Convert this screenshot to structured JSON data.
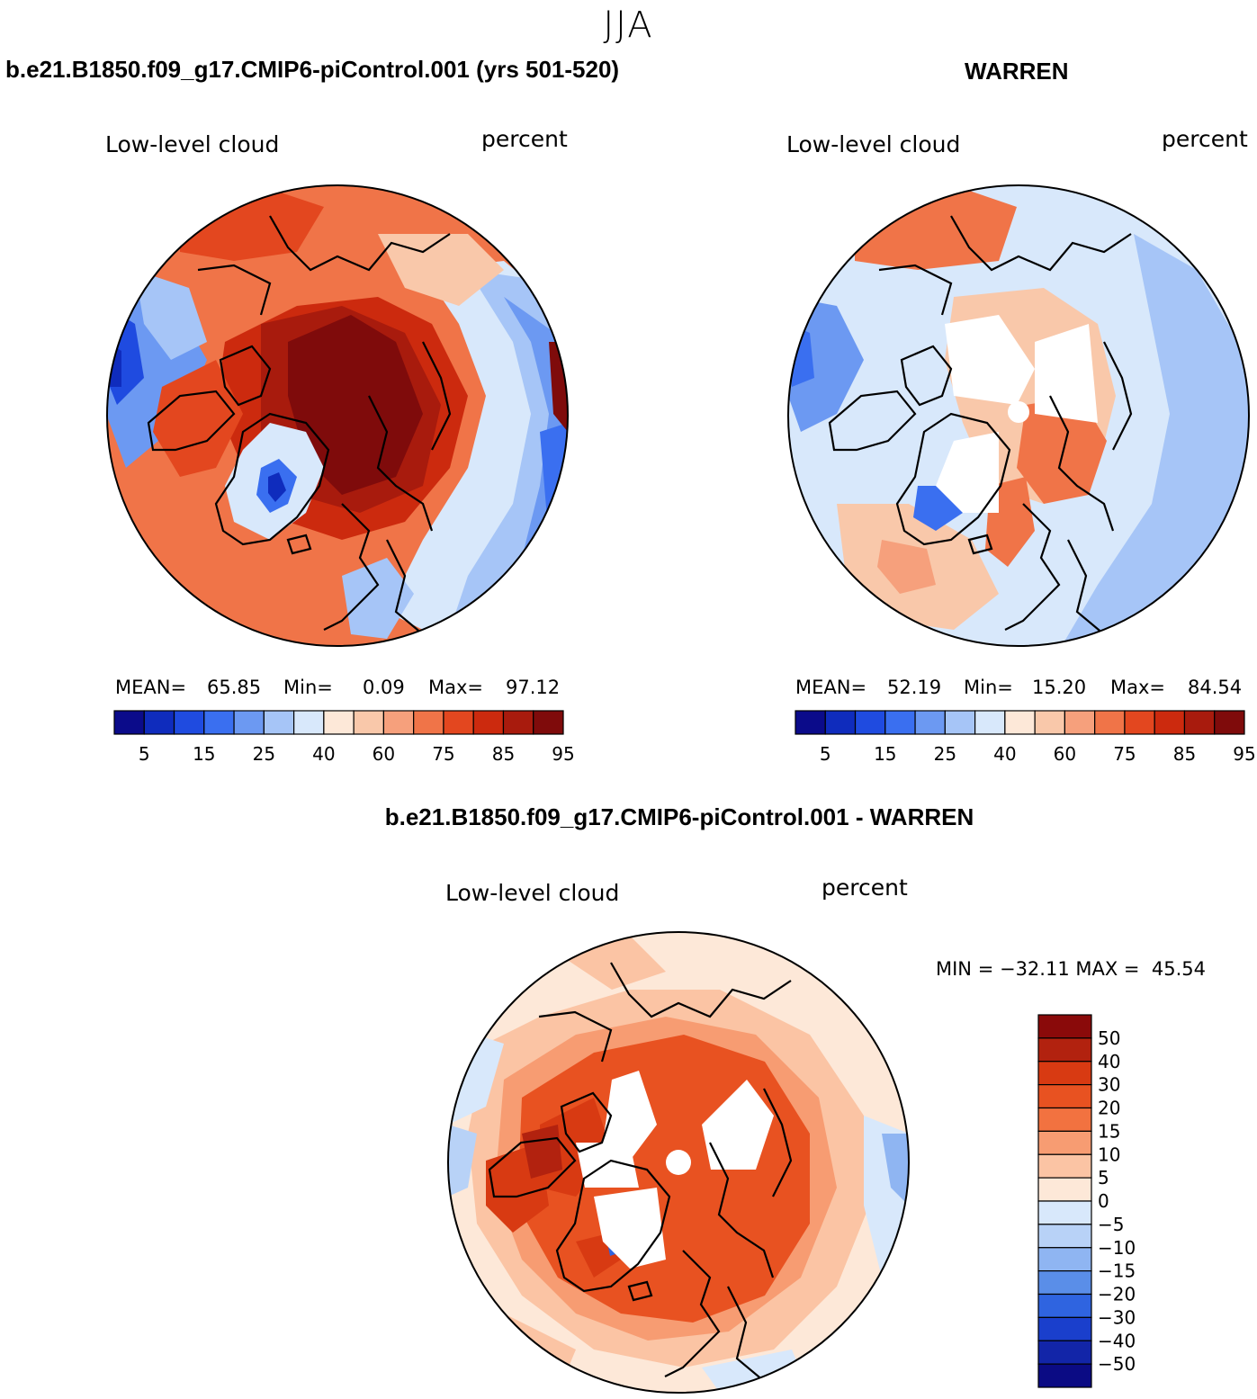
{
  "page": {
    "main_title": "JJA",
    "colors": {
      "ocean_mask": "#ffffff",
      "coastline": "#000000"
    }
  },
  "panels": [
    {
      "id": "model",
      "title": "b.e21.B1850.f09_g17.CMIP6-piControl.001 (yrs 501-520)",
      "variable": "Low-level cloud",
      "units": "percent",
      "stats": {
        "mean_label": "MEAN=",
        "mean": "65.85",
        "min_label": "Min=",
        "min": "0.09",
        "max_label": "Max=",
        "max": "97.12"
      }
    },
    {
      "id": "obs",
      "title": "WARREN",
      "variable": "Low-level cloud",
      "units": "percent",
      "stats": {
        "mean_label": "MEAN=",
        "mean": "52.19",
        "min_label": "Min=",
        "min": "15.20",
        "max_label": "Max=",
        "max": "84.54"
      }
    },
    {
      "id": "diff",
      "title": "b.e21.B1850.f09_g17.CMIP6-piControl.001 - WARREN",
      "variable": "Low-level cloud",
      "units": "percent",
      "stats_text": "MIN = −32.11 MAX =  45.54"
    }
  ],
  "colorbar_abs": {
    "colors": [
      "#0b0b8a",
      "#0f2cbd",
      "#1f4be0",
      "#3a6ff0",
      "#6c99f2",
      "#a6c5f7",
      "#d8e8fb",
      "#fde8d8",
      "#f9c8aa",
      "#f6a07c",
      "#f07448",
      "#e3471f",
      "#cc2a0e",
      "#a81b0d",
      "#7f0b0b"
    ],
    "labels": [
      "5",
      "15",
      "25",
      "40",
      "60",
      "75",
      "85",
      "95"
    ]
  },
  "colorbar_diff": {
    "colors_top_to_bottom": [
      "#8a0a0a",
      "#b2220f",
      "#d83a12",
      "#e85221",
      "#f27240",
      "#f79c72",
      "#fbc4a4",
      "#fde8d8",
      "#d8e8fb",
      "#b8d2f7",
      "#8fb5f2",
      "#5a8ee8",
      "#2f64e0",
      "#1a3fcc",
      "#1225a8",
      "#0b0b84"
    ],
    "labels_top_to_bottom": [
      "50",
      "40",
      "30",
      "20",
      "15",
      "10",
      "5",
      "0",
      "−5",
      "−10",
      "−15",
      "−20",
      "−30",
      "−40",
      "−50"
    ]
  }
}
